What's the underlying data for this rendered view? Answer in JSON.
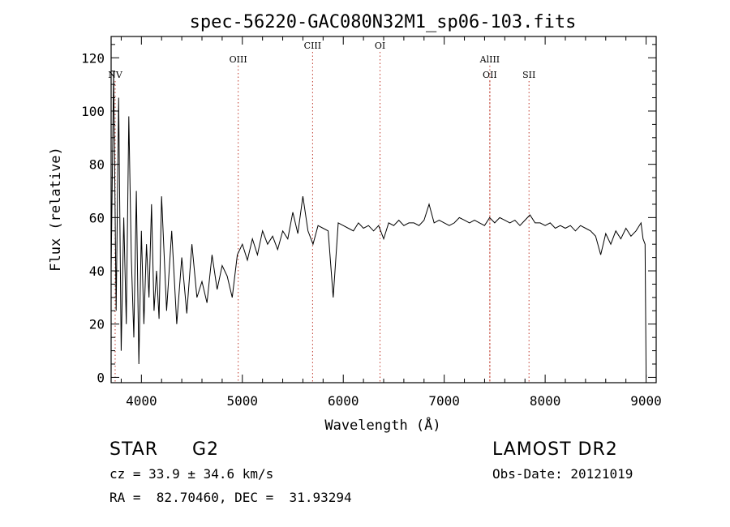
{
  "chart_data": {
    "type": "line",
    "title": "spec-56220-GAC080N32M1_sp06-103.fits",
    "xlabel": "Wavelength (Å)",
    "ylabel": "Flux (relative)",
    "xlim": [
      3700,
      9100
    ],
    "ylim": [
      -2,
      128
    ],
    "x_ticks": [
      4000,
      5000,
      6000,
      7000,
      8000,
      9000
    ],
    "y_ticks": [
      0,
      20,
      40,
      60,
      80,
      100,
      120
    ],
    "grid": false,
    "line_color": "#000000",
    "marker_color": "#c0392b",
    "series": [
      {
        "x": [
          3700,
          3725,
          3750,
          3775,
          3800,
          3825,
          3850,
          3875,
          3900,
          3925,
          3950,
          3975,
          4000,
          4025,
          4050,
          4075,
          4100,
          4125,
          4150,
          4175,
          4200,
          4250,
          4300,
          4350,
          4400,
          4450,
          4500,
          4550,
          4600,
          4650,
          4700,
          4750,
          4800,
          4850,
          4900,
          4950,
          5000,
          5050,
          5100,
          5150,
          5200,
          5250,
          5300,
          5350,
          5400,
          5450,
          5500,
          5550,
          5600,
          5650,
          5700,
          5750,
          5800,
          5850,
          5900,
          5950,
          6000,
          6050,
          6100,
          6150,
          6200,
          6250,
          6300,
          6350,
          6400,
          6450,
          6500,
          6550,
          6600,
          6650,
          6700,
          6750,
          6800,
          6850,
          6900,
          6950,
          7000,
          7050,
          7100,
          7150,
          7200,
          7250,
          7300,
          7350,
          7400,
          7450,
          7500,
          7550,
          7600,
          7650,
          7700,
          7750,
          7800,
          7850,
          7900,
          7950,
          8000,
          8050,
          8100,
          8150,
          8200,
          8250,
          8300,
          8350,
          8400,
          8450,
          8500,
          8550,
          8600,
          8650,
          8700,
          8750,
          8800,
          8850,
          8900,
          8950,
          8970,
          8990,
          9000
        ],
        "y": [
          40,
          115,
          25,
          105,
          10,
          60,
          20,
          98,
          45,
          15,
          70,
          5,
          55,
          20,
          50,
          30,
          65,
          25,
          40,
          22,
          68,
          25,
          55,
          20,
          45,
          24,
          50,
          30,
          36,
          28,
          46,
          33,
          42,
          38,
          30,
          46,
          50,
          44,
          52,
          46,
          55,
          50,
          53,
          48,
          55,
          52,
          62,
          54,
          68,
          55,
          50,
          57,
          56,
          55,
          30,
          58,
          57,
          56,
          55,
          58,
          56,
          57,
          55,
          57,
          52,
          58,
          57,
          59,
          57,
          58,
          58,
          57,
          59,
          65,
          58,
          59,
          58,
          57,
          58,
          60,
          59,
          58,
          59,
          58,
          57,
          60,
          58,
          60,
          59,
          58,
          59,
          57,
          59,
          61,
          58,
          58,
          57,
          58,
          56,
          57,
          56,
          57,
          55,
          57,
          56,
          55,
          53,
          46,
          54,
          50,
          55,
          52,
          56,
          53,
          55,
          58,
          52,
          50,
          0
        ]
      }
    ],
    "line_markers": [
      {
        "label": "NV",
        "x": 3740,
        "level": 2
      },
      {
        "label": "OIII",
        "x": 4959,
        "level": 1
      },
      {
        "label": "CIII",
        "x": 5696,
        "level": 0
      },
      {
        "label": "OI",
        "x": 6364,
        "level": 0
      },
      {
        "label": "AlIII",
        "x": 7452,
        "level": 1
      },
      {
        "label": "OII",
        "x": 7452,
        "level": 2
      },
      {
        "label": "SII",
        "x": 7840,
        "level": 2
      }
    ]
  },
  "info": {
    "object_class": "STAR",
    "subclass": "G2",
    "survey": "LAMOST DR2",
    "cz": "cz = 33.9 ± 34.6 km/s",
    "obs_date": "Obs-Date: 20121019",
    "radec": "RA =  82.70460, DEC =  31.93294"
  }
}
